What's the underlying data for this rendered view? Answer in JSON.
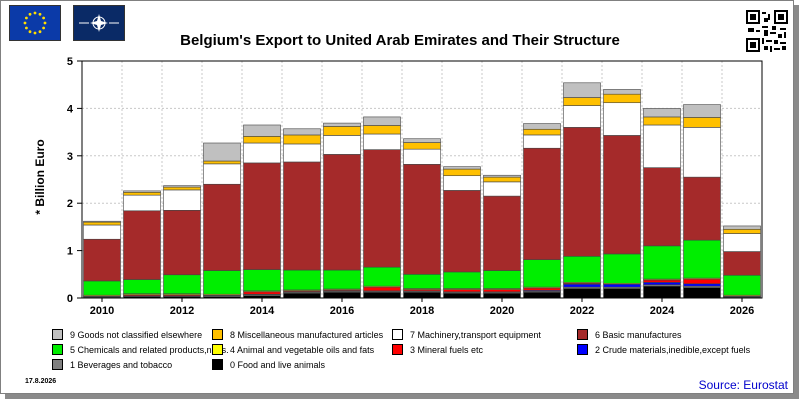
{
  "title": "Belgium's Export to United Arab Emirates and Their Structure",
  "date_stamp": "17.8.2026",
  "source": "Source: Eurostat",
  "icons": [
    "eu-flag-icon",
    "nato-flag-icon",
    "qr-code-icon"
  ],
  "chart_data": {
    "type": "bar",
    "stacked": true,
    "ylabel": "* Billion Euro",
    "ylim": [
      0,
      5
    ],
    "yticks": [
      0,
      1,
      2,
      3,
      4,
      5
    ],
    "x": [
      2010,
      2011,
      2012,
      2013,
      2014,
      2015,
      2016,
      2017,
      2018,
      2019,
      2020,
      2021,
      2022,
      2023,
      2024,
      2025,
      2026
    ],
    "xtick_labels": [
      "2010",
      "2012",
      "2014",
      "2016",
      "2018",
      "2020",
      "2022",
      "2024",
      "2026"
    ],
    "grid": true,
    "legend_placement": "bottom",
    "series": [
      {
        "name": "0 Food and live animals",
        "color": "#000000",
        "values": [
          0.02,
          0.03,
          0.03,
          0.03,
          0.05,
          0.1,
          0.12,
          0.12,
          0.12,
          0.1,
          0.1,
          0.12,
          0.2,
          0.2,
          0.25,
          0.22,
          0.02
        ]
      },
      {
        "name": "1 Beverages and tobacco",
        "color": "#808080",
        "values": [
          0.01,
          0.01,
          0.01,
          0.02,
          0.02,
          0.02,
          0.02,
          0.02,
          0.02,
          0.02,
          0.02,
          0.02,
          0.03,
          0.03,
          0.03,
          0.03,
          0.01
        ]
      },
      {
        "name": "2 Crude materials,inedible,except fuels",
        "color": "#0000ff",
        "values": [
          0.01,
          0.01,
          0.01,
          0.01,
          0.01,
          0.01,
          0.01,
          0.01,
          0.01,
          0.01,
          0.01,
          0.02,
          0.06,
          0.06,
          0.05,
          0.05,
          0.01
        ]
      },
      {
        "name": "3 Mineral fuels etc",
        "color": "#ff0000",
        "values": [
          0.0,
          0.02,
          0.02,
          0.0,
          0.05,
          0.02,
          0.02,
          0.08,
          0.03,
          0.05,
          0.05,
          0.05,
          0.02,
          0.0,
          0.05,
          0.1,
          0.0
        ]
      },
      {
        "name": "4 Animal and vegetable oils and fats",
        "color": "#ffff00",
        "values": [
          0.02,
          0.02,
          0.02,
          0.02,
          0.02,
          0.02,
          0.02,
          0.02,
          0.02,
          0.02,
          0.02,
          0.02,
          0.02,
          0.02,
          0.02,
          0.02,
          0.02
        ]
      },
      {
        "name": "5 Chemicals and related products,n.e.s.",
        "color": "#00ee00",
        "values": [
          0.3,
          0.3,
          0.4,
          0.5,
          0.45,
          0.42,
          0.4,
          0.4,
          0.3,
          0.35,
          0.38,
          0.58,
          0.55,
          0.62,
          0.7,
          0.8,
          0.42
        ]
      },
      {
        "name": "6 Basic manufactures",
        "color": "#a52a2a",
        "values": [
          0.88,
          1.45,
          1.36,
          1.82,
          2.25,
          2.28,
          2.44,
          2.48,
          2.32,
          1.72,
          1.57,
          2.35,
          2.72,
          2.5,
          1.65,
          1.33,
          0.5
        ]
      },
      {
        "name": "7 Machinery,transport equipment",
        "color": "#ffffff",
        "values": [
          0.3,
          0.33,
          0.43,
          0.43,
          0.42,
          0.38,
          0.4,
          0.33,
          0.32,
          0.31,
          0.3,
          0.28,
          0.46,
          0.69,
          0.9,
          1.05,
          0.38
        ]
      },
      {
        "name": "8 Miscellaneous manufactured articles",
        "color": "#ffc000",
        "values": [
          0.06,
          0.06,
          0.06,
          0.06,
          0.14,
          0.19,
          0.19,
          0.18,
          0.14,
          0.14,
          0.1,
          0.12,
          0.17,
          0.18,
          0.17,
          0.21,
          0.09
        ]
      },
      {
        "name": "9 Goods not classified elsewhere",
        "color": "#c0c0c0",
        "values": [
          0.02,
          0.03,
          0.03,
          0.38,
          0.24,
          0.13,
          0.07,
          0.18,
          0.08,
          0.05,
          0.04,
          0.12,
          0.31,
          0.1,
          0.18,
          0.27,
          0.07
        ]
      }
    ]
  },
  "legend_order": [
    9,
    8,
    7,
    6,
    5,
    4,
    3,
    2,
    1,
    0
  ]
}
